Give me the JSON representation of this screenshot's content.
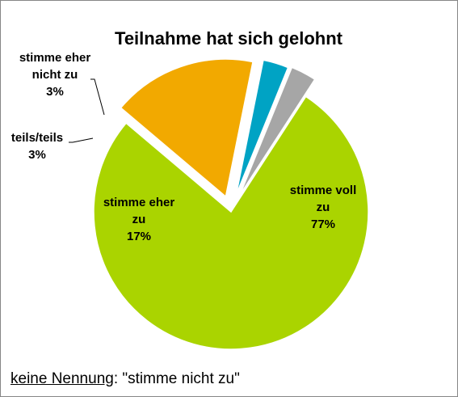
{
  "chart_data": {
    "type": "pie",
    "title": "Teilnahme hat sich gelohnt",
    "slices": [
      {
        "label_lines": [
          "stimme voll",
          "zu"
        ],
        "percent_label": "77%",
        "value": 77,
        "color": "#aad400"
      },
      {
        "label_lines": [
          "stimme eher",
          "zu"
        ],
        "percent_label": "17%",
        "value": 17,
        "color": "#f2a900"
      },
      {
        "label_lines": [
          "teils/teils"
        ],
        "percent_label": "3%",
        "value": 3,
        "color": "#00a3c4"
      },
      {
        "label_lines": [
          "stimme eher",
          "nicht zu"
        ],
        "percent_label": "3%",
        "value": 3,
        "color": "#a6a6a6"
      }
    ]
  },
  "footnote": {
    "keyword": "keine Nennung",
    "text": ": \"stimme nicht zu\""
  }
}
